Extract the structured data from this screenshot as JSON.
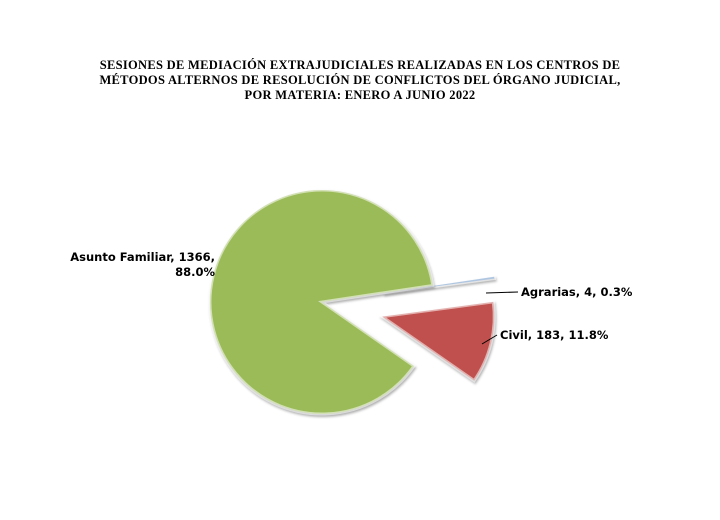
{
  "chart_data": {
    "type": "pie",
    "title": "SESIONES  DE  MEDIACIÓN  EXTRAJUDICIALES  REALIZADAS  EN  LOS  CENTROS  DE\nMÉTODOS  ALTERNOS  DE  RESOLUCIÓN  DE  CONFLICTOS  DEL  ÓRGANO  JUDICIAL,\nPOR MATERIA:  ENERO  A  JUNIO  2022",
    "values": [
      4,
      183,
      1366
    ],
    "value_labels": [
      "Agrarias, 4, 0.3%",
      "Civil, 183, 11.8%",
      "Asunto Familiar, 1366,\n88.0%"
    ],
    "colors": [
      "#4f81bd",
      "#c0504d",
      "#9bbb59"
    ],
    "exploded": [
      true,
      true,
      false
    ]
  }
}
